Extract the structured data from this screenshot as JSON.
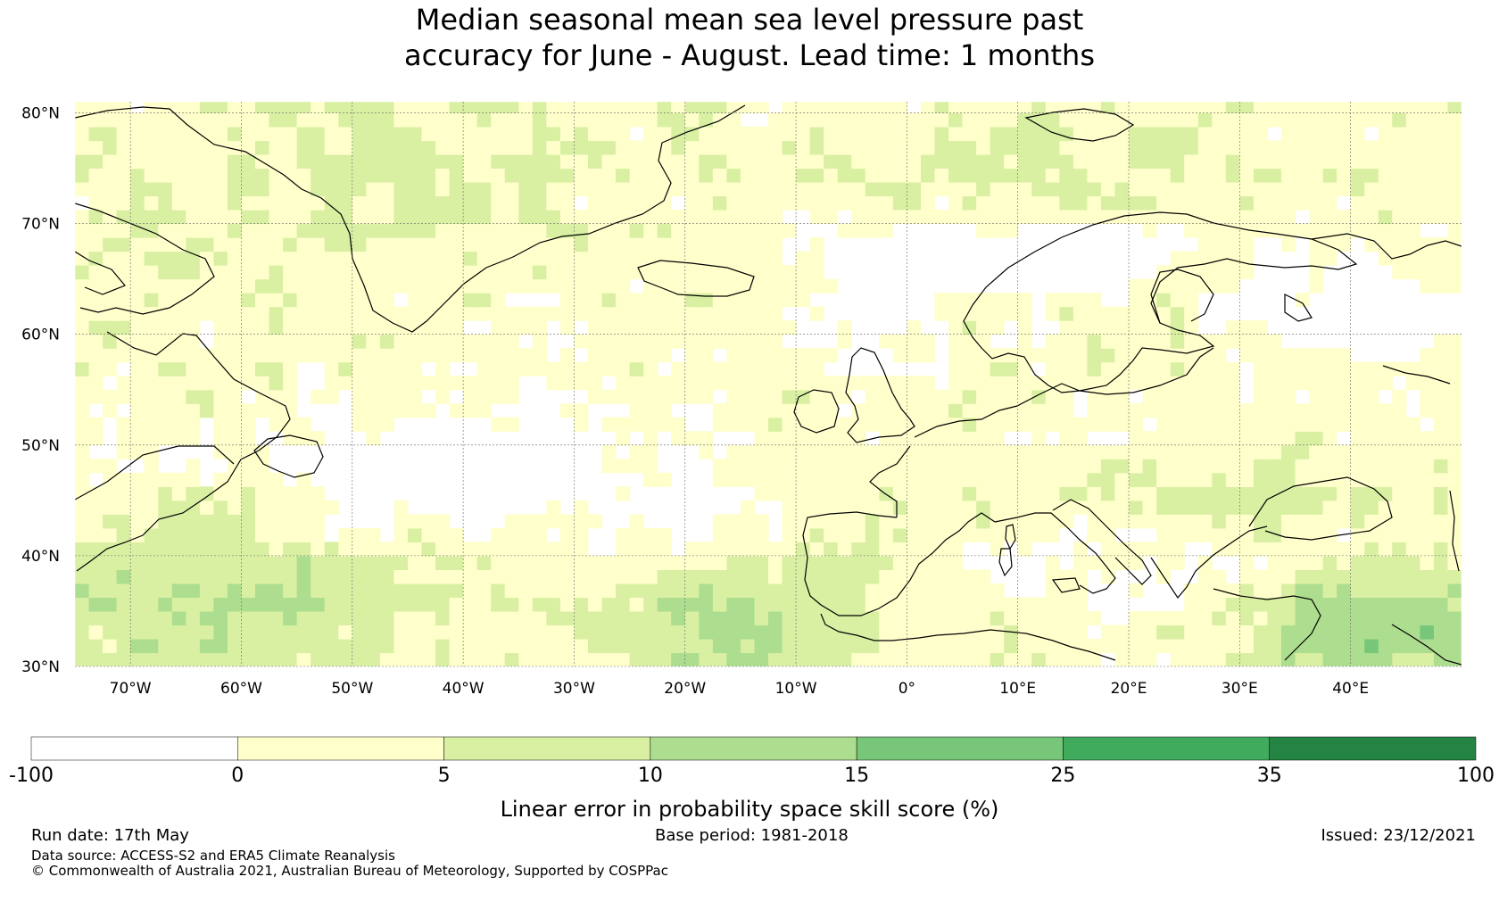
{
  "title": {
    "line1": "Median seasonal mean sea level pressure past",
    "line2": "accuracy for June - August. Lead time: 1 months"
  },
  "map": {
    "lat_labels": [
      "80°N",
      "70°N",
      "60°N",
      "50°N",
      "40°N",
      "30°N"
    ],
    "lon_labels": [
      "70°W",
      "60°W",
      "50°W",
      "40°W",
      "30°W",
      "20°W",
      "10°W",
      "0°",
      "10°E",
      "20°E",
      "30°E",
      "40°E"
    ],
    "lat_values": [
      80,
      70,
      60,
      50,
      40,
      30
    ],
    "lon_values": [
      -70,
      -60,
      -50,
      -40,
      -30,
      -20,
      -10,
      0,
      10,
      20,
      30,
      40
    ],
    "lat_range": [
      30,
      81
    ],
    "lon_range": [
      -75,
      50
    ]
  },
  "colorbar": {
    "ticks": [
      "-100",
      "0",
      "5",
      "10",
      "15",
      "25",
      "35",
      "100"
    ],
    "colors": [
      "#ffffff",
      "#ffffcc",
      "#d9f0a3",
      "#addd8e",
      "#78c679",
      "#41ab5d",
      "#238443"
    ],
    "label": "Linear error in probability space skill score (%)"
  },
  "footer": {
    "run_date": "Run date: 17th May",
    "base_period": "Base period: 1981-2018",
    "issued": "Issued: 23/12/2021",
    "data_source": "Data source: ACCESS-S2 and ERA5 Climate Reanalysis",
    "copyright": "© Commonwealth of Australia 2021, Australian Bureau of Meteorology, Supported by COSPPac"
  }
}
